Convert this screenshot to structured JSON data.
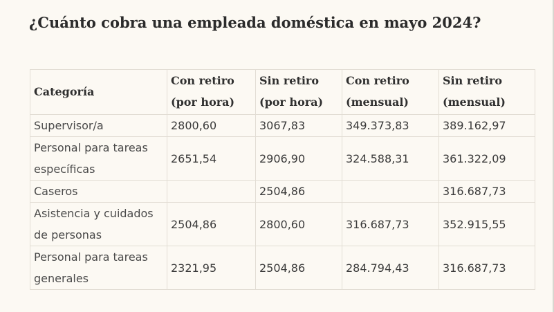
{
  "title": "¿Cuánto cobra una empleada doméstica en mayo 2024?",
  "table": {
    "headers": [
      [
        "Categoría"
      ],
      [
        "Con retiro",
        "(por hora)"
      ],
      [
        "Sin retiro",
        "(por hora)"
      ],
      [
        "Con retiro",
        "(mensual)"
      ],
      [
        "Sin retiro",
        "(mensual)"
      ]
    ],
    "rows": [
      {
        "categoria": [
          "Supervisor/a"
        ],
        "con_retiro_hora": "2800,60",
        "sin_retiro_hora": "3067,83",
        "con_retiro_mensual": "349.373,83",
        "sin_retiro_mensual": "389.162,97"
      },
      {
        "categoria": [
          "Personal para tareas",
          "específicas"
        ],
        "con_retiro_hora": "2651,54",
        "sin_retiro_hora": "2906,90",
        "con_retiro_mensual": "324.588,31",
        "sin_retiro_mensual": "361.322,09"
      },
      {
        "categoria": [
          "Caseros"
        ],
        "con_retiro_hora": "",
        "sin_retiro_hora": "2504,86",
        "con_retiro_mensual": "",
        "sin_retiro_mensual": "316.687,73"
      },
      {
        "categoria": [
          "Asistencia y cuidados",
          "de personas"
        ],
        "con_retiro_hora": "2504,86",
        "sin_retiro_hora": "2800,60",
        "con_retiro_mensual": "316.687,73",
        "sin_retiro_mensual": "352.915,55"
      },
      {
        "categoria": [
          "Personal para tareas",
          "generales"
        ],
        "con_retiro_hora": "2321,95",
        "sin_retiro_hora": "2504,86",
        "con_retiro_mensual": "284.794,43",
        "sin_retiro_mensual": "316.687,73"
      }
    ]
  }
}
